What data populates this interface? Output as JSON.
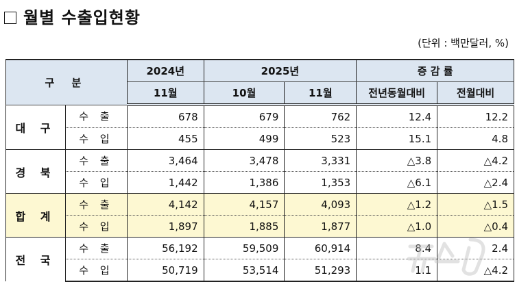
{
  "title": "월별 수출입현황",
  "unit": "(단위 : 백만달러, %)",
  "header": {
    "category": "구 분",
    "y2024": "2024년",
    "y2025": "2025년",
    "rate": "증 감 률",
    "m2024_11": "11월",
    "m2025_10": "10월",
    "m2025_11": "11월",
    "yoy": "전년동월대비",
    "mom": "전월대비"
  },
  "rows": [
    {
      "region": "대 구",
      "items": [
        {
          "type": "수 출",
          "v2024_11": "678",
          "v2025_10": "679",
          "v2025_11": "762",
          "yoy": "12.4",
          "mom": "12.2"
        },
        {
          "type": "수 입",
          "v2024_11": "455",
          "v2025_10": "499",
          "v2025_11": "523",
          "yoy": "15.1",
          "mom": "4.8"
        }
      ]
    },
    {
      "region": "경 북",
      "items": [
        {
          "type": "수 출",
          "v2024_11": "3,464",
          "v2025_10": "3,478",
          "v2025_11": "3,331",
          "yoy": "△3.8",
          "mom": "△4.2"
        },
        {
          "type": "수 입",
          "v2024_11": "1,442",
          "v2025_10": "1,386",
          "v2025_11": "1,353",
          "yoy": "△6.1",
          "mom": "△2.4"
        }
      ]
    },
    {
      "region": "합 계",
      "items": [
        {
          "type": "수 출",
          "v2024_11": "4,142",
          "v2025_10": "4,157",
          "v2025_11": "4,093",
          "yoy": "△1.2",
          "mom": "△1.5"
        },
        {
          "type": "수 입",
          "v2024_11": "1,897",
          "v2025_10": "1,885",
          "v2025_11": "1,877",
          "yoy": "△1.0",
          "mom": "△0.4"
        }
      ]
    },
    {
      "region": "전 국",
      "items": [
        {
          "type": "수 출",
          "v2024_11": "56,192",
          "v2025_10": "59,509",
          "v2025_11": "60,914",
          "yoy": "8.4",
          "mom": "2.4"
        },
        {
          "type": "수 입",
          "v2024_11": "50,719",
          "v2025_10": "53,514",
          "v2025_11": "51,293",
          "yoy": "1.1",
          "mom": "△4.2"
        }
      ]
    }
  ],
  "highlight_color": "#fdf8d2",
  "header_color": "#dce6f1",
  "watermark": "뉴스1"
}
